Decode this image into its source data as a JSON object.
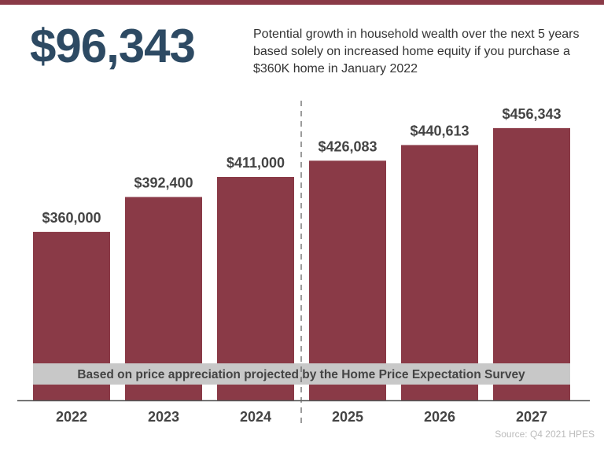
{
  "headline": "$96,343",
  "description": "Potential growth in household wealth over the next 5 years based solely on increased home equity if you purchase a $360K home in January 2022",
  "source": "Source: Q4 2021 HPES",
  "colors": {
    "bar": "#8a3a47",
    "headline": "#2d4a63",
    "band": "#c8c8c8"
  },
  "chart_data": {
    "type": "bar",
    "categories": [
      "2022",
      "2023",
      "2024",
      "2025",
      "2026",
      "2027"
    ],
    "values": [
      360000,
      392400,
      411000,
      426083,
      440613,
      456343
    ],
    "data_labels": [
      "$360,000",
      "$392,400",
      "$411,000",
      "$426,083",
      "$440,613",
      "$456,343"
    ],
    "band_text": "Based on price appreciation projected by the Home Price Expectation Survey",
    "divider_between": [
      "2024",
      "2025"
    ],
    "grid": false,
    "xlabel": "",
    "ylabel": ""
  }
}
